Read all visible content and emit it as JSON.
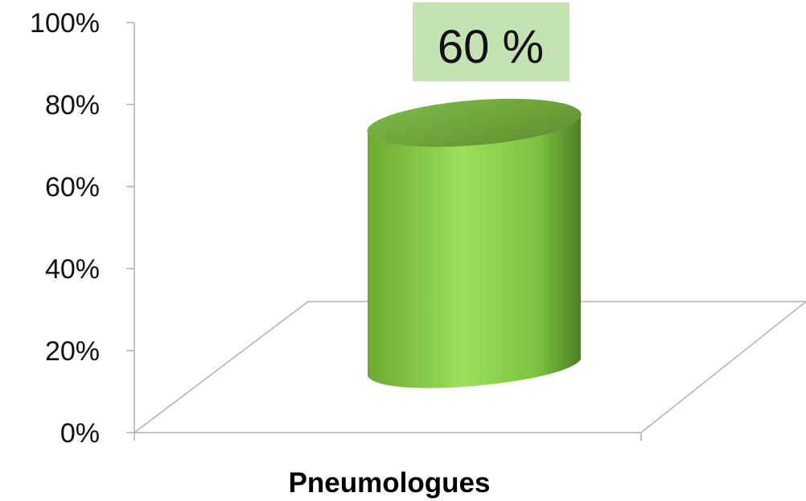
{
  "chart_data": {
    "type": "bar",
    "style": "3d-cylinder",
    "categories": [
      "Pneumologues"
    ],
    "values": [
      60
    ],
    "data_labels": [
      "60 %"
    ],
    "ylim": [
      0,
      100
    ],
    "yticks": [
      0,
      20,
      40,
      60,
      80,
      100
    ],
    "ytick_labels": [
      "0%",
      "20%",
      "40%",
      "60%",
      "80%",
      "100%"
    ],
    "grid": false,
    "legend": "none",
    "colors": {
      "bar_light": "#9be05a",
      "bar_mid": "#7cc241",
      "bar_dark": "#4e7f25",
      "bar_top": "#6fa43a",
      "label_bg": "#c4e2b4",
      "axis": "#b0b0b0"
    }
  }
}
